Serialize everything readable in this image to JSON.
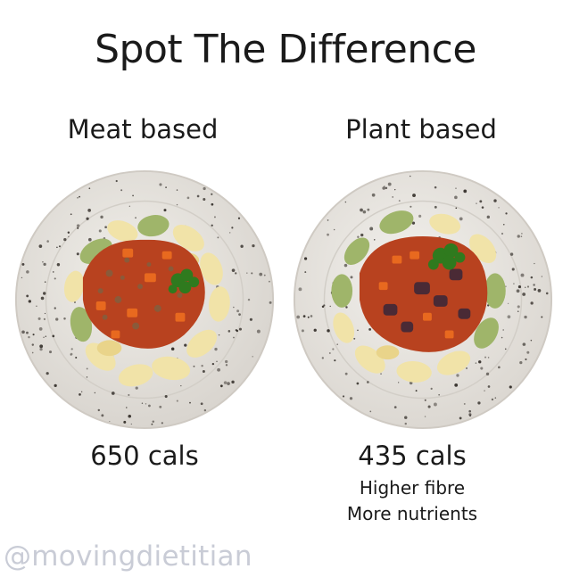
{
  "title": "Spot The Difference",
  "left": {
    "heading": "Meat based",
    "calories": "650 cals",
    "image": "meat-based-pasta-plate"
  },
  "right": {
    "heading": "Plant based",
    "calories": "435 cals",
    "notes": [
      "Higher fibre",
      "More nutrients"
    ],
    "image": "plant-based-pasta-plate"
  },
  "watermark": "@movingdietitian",
  "colors": {
    "plate": "#e9e6e1",
    "speckle": "#3a3530",
    "sauce": "#b8421f",
    "carrot": "#e8691f",
    "pasta_cream": "#f1e3a8",
    "pasta_green": "#9fb56a",
    "parsley": "#2f7a1e",
    "mince": "#8a5a3a",
    "eggplant": "#4a2a35",
    "watermark": "#c9ccd6"
  }
}
